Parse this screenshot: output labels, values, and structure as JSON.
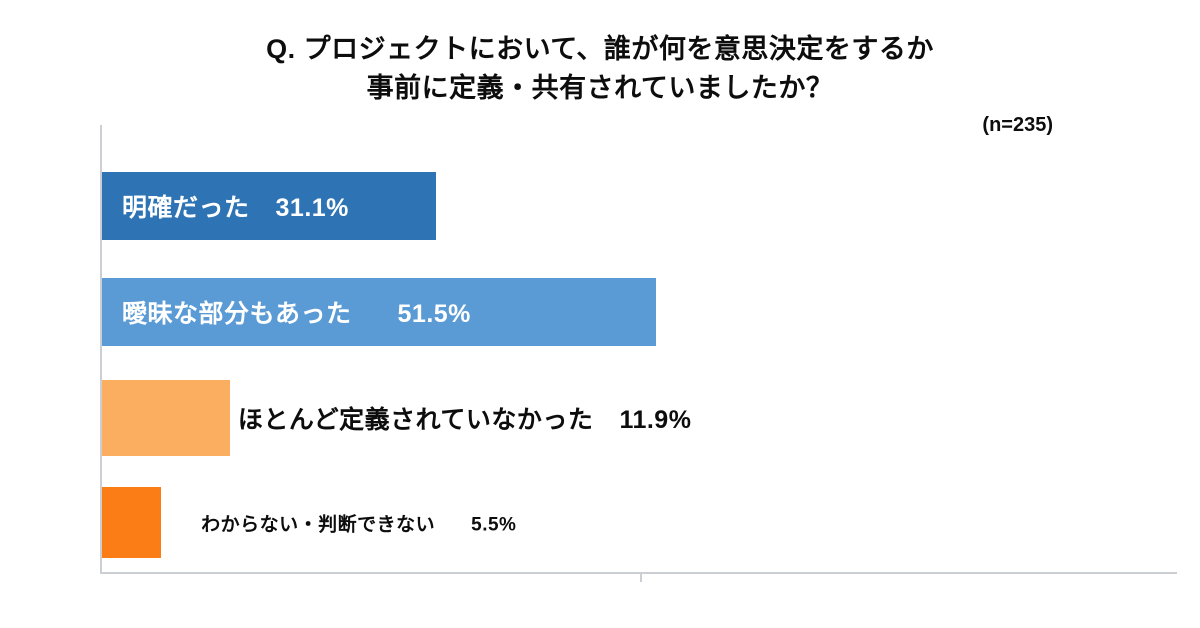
{
  "title": {
    "line1": "Q. プロジェクトにおいて、誰が何を意思決定をするか",
    "line2": "事前に定義・共有されていましたか？"
  },
  "sample_size": "(n=235)",
  "chart_data": {
    "type": "bar",
    "orientation": "horizontal",
    "title": "Q. プロジェクトにおいて、誰が何を意思決定をするか 事前に定義・共有されていましたか？",
    "sample_size": "(n=235)",
    "categories": [
      "明確だった",
      "曖昧な部分もあった",
      "ほとんど定義されていなかった",
      "わからない・判断できない"
    ],
    "values": [
      31.1,
      51.5,
      11.9,
      5.5
    ],
    "value_labels": [
      "31.1%",
      "51.5%",
      "11.9%",
      "5.5%"
    ],
    "bar_colors": [
      "#2E74B5",
      "#5B9BD5",
      "#FBAD60",
      "#FB7D15"
    ],
    "label_placement": [
      "inside",
      "inside",
      "outside",
      "outside"
    ],
    "label_colors": [
      "#ffffff",
      "#ffffff",
      "#0d0d0d",
      "#0d0d0d"
    ],
    "xlim": [
      0,
      100
    ],
    "tick_values": [
      50
    ],
    "axis_color": "#cbcfd4",
    "grid": false,
    "legend": "none"
  }
}
